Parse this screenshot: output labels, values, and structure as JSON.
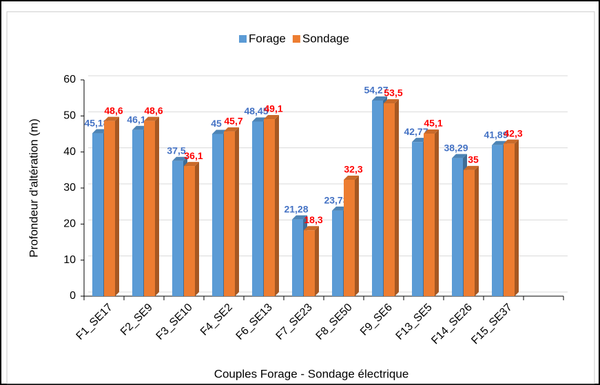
{
  "chart_data": {
    "type": "bar",
    "categories": [
      "F1_SE17",
      "F2_SE9",
      "F3_SE10",
      "F4_SE2",
      "F6_SE13",
      "F7_SE23",
      "F8_SE50",
      "F9_SE6",
      "F13_SE5",
      "F14_SE26",
      "F15_SE37",
      null
    ],
    "series": [
      {
        "name": "Forage",
        "color": "#5b9bd5",
        "label_color": "#4472c4",
        "values": [
          45.18,
          46.1,
          37.5,
          45,
          48.45,
          21.28,
          23.73,
          54.27,
          42.77,
          38.29,
          41.89,
          null
        ],
        "value_labels": [
          "45,18",
          "46,1",
          "37,5",
          "45",
          "48,45",
          "21,28",
          "23,73",
          "54,27",
          "42,77",
          "38,29",
          "41,89",
          null
        ]
      },
      {
        "name": "Sondage",
        "color": "#ed7d31",
        "label_color": "#ff0000",
        "values": [
          48.6,
          48.6,
          36.1,
          45.7,
          49.1,
          18.3,
          32.3,
          53.5,
          45.1,
          35,
          42.3,
          null
        ],
        "value_labels": [
          "48,6",
          "48,6",
          "36,1",
          "45,7",
          "49,1",
          "18,3",
          "32,3",
          "53,5",
          "45,1",
          "35",
          "42,3",
          null
        ]
      }
    ],
    "x_label": "Couples Forage - Sondage électrique",
    "y_label": "Profondeur d'altération (m)",
    "ylim": [
      0,
      60
    ],
    "yticks": [
      0,
      10,
      20,
      30,
      40,
      50,
      60
    ],
    "grid": true,
    "legend": "top"
  }
}
